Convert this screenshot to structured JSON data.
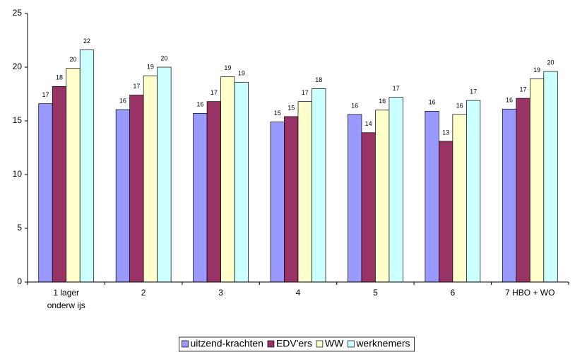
{
  "chart_data": {
    "type": "bar",
    "categories": [
      "1 lager\nonderw ijs",
      "2",
      "3",
      "4",
      "5",
      "6",
      "7 HBO + WO"
    ],
    "series": [
      {
        "name": "uitzend-krachten",
        "color": "#9999ff",
        "values": [
          16.6,
          16.05,
          15.7,
          14.9,
          15.6,
          15.9,
          16.1
        ],
        "value_labels": [
          "17",
          "16",
          "16",
          "15",
          "16",
          "16",
          "16"
        ]
      },
      {
        "name": "EDV'ers",
        "color": "#993366",
        "values": [
          18.2,
          17.4,
          16.8,
          15.4,
          13.9,
          13.1,
          17.1
        ],
        "value_labels": [
          "18",
          "17",
          "17",
          "15",
          "14",
          "13",
          "17"
        ]
      },
      {
        "name": "WW",
        "color": "#ffffcc",
        "values": [
          19.9,
          19.2,
          19.1,
          16.8,
          16.0,
          15.6,
          18.9
        ],
        "value_labels": [
          "20",
          "19",
          "19",
          "17",
          "16",
          "16",
          "19"
        ]
      },
      {
        "name": "werknemers",
        "color": "#ccffff",
        "values": [
          21.6,
          20.0,
          18.6,
          18.0,
          17.2,
          16.9,
          19.6
        ],
        "value_labels": [
          "22",
          "20",
          "19",
          "18",
          "17",
          "17",
          "20"
        ]
      }
    ],
    "ylim": [
      0,
      25
    ],
    "yticks": [
      0,
      5,
      10,
      15,
      20,
      25
    ],
    "grid": false,
    "legend": "bottom"
  }
}
